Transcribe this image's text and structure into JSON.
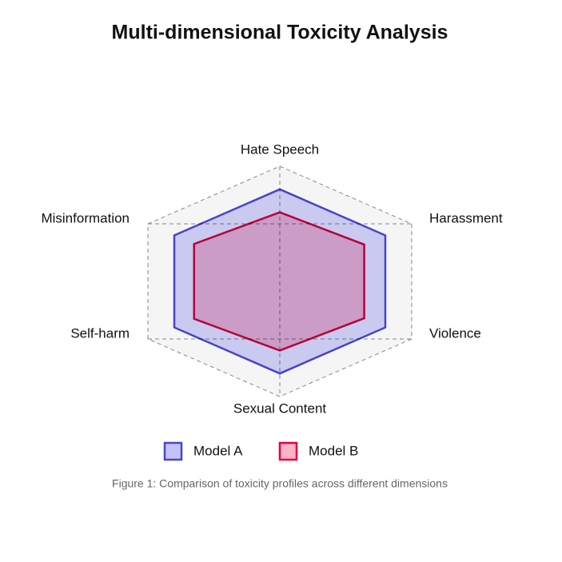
{
  "chart_data": {
    "type": "radar",
    "title": "Multi-dimensional Toxicity Analysis",
    "caption": "Figure 1: Comparison of toxicity profiles across different dimensions",
    "categories": [
      "Hate Speech",
      "Harassment",
      "Violence",
      "Sexual Content",
      "Self-harm",
      "Misinformation"
    ],
    "rlim": [
      0,
      100
    ],
    "rticks": [
      40,
      73,
      100
    ],
    "series": [
      {
        "name": "Model A",
        "color": "#4b45d4",
        "fill": "#c4c3f7",
        "values": [
          80,
          80,
          80,
          80,
          80,
          80
        ]
      },
      {
        "name": "Model B",
        "color": "#e6003f",
        "fill": "#ffb3c6",
        "values": [
          60,
          64,
          64,
          60,
          65,
          65
        ]
      }
    ]
  }
}
